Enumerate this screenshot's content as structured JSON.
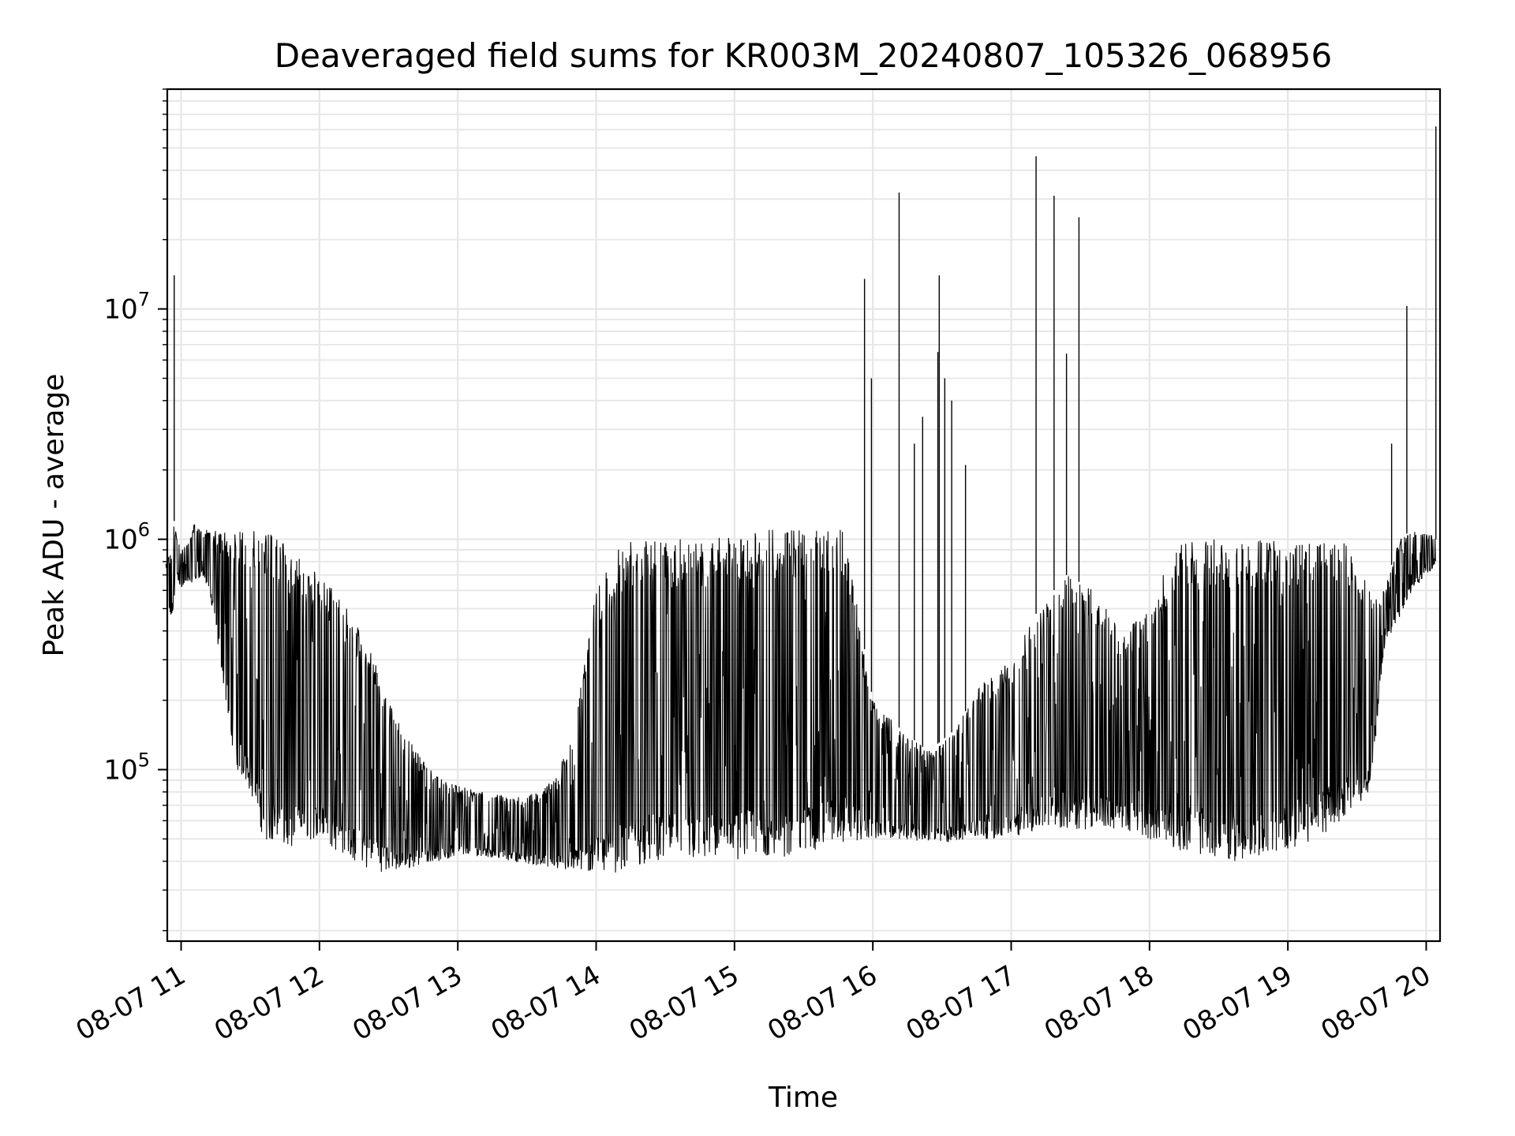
{
  "chart_data": {
    "type": "line",
    "title": "Deaveraged field sums for KR003M_20240807_105326_068956",
    "xlabel": "Time",
    "ylabel": "Peak ADU - average",
    "yscale": "log",
    "xlim_hours": [
      10.9,
      20.1
    ],
    "ylim": [
      18000,
      90000000
    ],
    "grid": "both (major and minor)",
    "line_color": "#000000",
    "x_tick_labels": [
      "08-07 11",
      "08-07 12",
      "08-07 13",
      "08-07 14",
      "08-07 15",
      "08-07 16",
      "08-07 17",
      "08-07 18",
      "08-07 19",
      "08-07 20"
    ],
    "y_tick_labels": [
      {
        "base": "10",
        "exp": "5"
      },
      {
        "base": "10",
        "exp": "6"
      },
      {
        "base": "10",
        "exp": "7"
      }
    ],
    "series": [
      {
        "x_hours": [
          10.89,
          10.93,
          10.95,
          10.97,
          11.0,
          11.05,
          11.1,
          11.15,
          11.2,
          11.25,
          11.3,
          11.35,
          11.4,
          11.45,
          11.5,
          11.55,
          11.6,
          11.7,
          11.8,
          11.9,
          12.0,
          12.1,
          12.2,
          12.3,
          12.4,
          12.5,
          12.6,
          12.7,
          12.8,
          12.9,
          13.0,
          13.2,
          13.4,
          13.6,
          13.8,
          14.0,
          14.2,
          14.4,
          14.6,
          14.8,
          15.0,
          15.2,
          15.4,
          15.6,
          15.8,
          16.0,
          16.2,
          16.4,
          16.6,
          16.8,
          17.0,
          17.2,
          17.4,
          17.6,
          17.8,
          18.0,
          18.2,
          18.4,
          18.6,
          18.8,
          19.0,
          19.2,
          19.4,
          19.5,
          19.6,
          19.7,
          19.8,
          19.9,
          20.0,
          20.05,
          20.07
        ],
        "low": [
          500000,
          450000,
          500000,
          700000,
          600000,
          650000,
          650000,
          700000,
          600000,
          400000,
          250000,
          150000,
          100000,
          90000,
          80000,
          60000,
          50000,
          45000,
          45000,
          50000,
          48000,
          45000,
          42000,
          38000,
          36000,
          36000,
          36000,
          38000,
          40000,
          40000,
          42000,
          42000,
          40000,
          38000,
          36000,
          35000,
          36000,
          40000,
          40000,
          40000,
          40000,
          42000,
          40000,
          45000,
          48000,
          50000,
          50000,
          48000,
          48000,
          50000,
          50000,
          55000,
          55000,
          55000,
          55000,
          50000,
          45000,
          42000,
          40000,
          40000,
          45000,
          50000,
          60000,
          70000,
          80000,
          350000,
          450000,
          600000,
          700000,
          750000,
          800000
        ],
        "high": [
          800000,
          900000,
          1200000,
          1000000,
          900000,
          1000000,
          1200000,
          1100000,
          1100000,
          1100000,
          1100000,
          1100000,
          1100000,
          1100000,
          1100000,
          1100000,
          1100000,
          1000000,
          900000,
          800000,
          700000,
          600000,
          500000,
          400000,
          300000,
          200000,
          150000,
          120000,
          100000,
          90000,
          85000,
          80000,
          75000,
          80000,
          120000,
          600000,
          1000000,
          1000000,
          1000000,
          1000000,
          1050000,
          1100000,
          1100000,
          1100000,
          1100000,
          200000,
          150000,
          120000,
          150000,
          250000,
          300000,
          500000,
          700000,
          600000,
          400000,
          500000,
          1000000,
          1000000,
          1000000,
          1000000,
          1000000,
          1000000,
          1000000,
          800000,
          600000,
          600000,
          1000000,
          1100000,
          1050000,
          1050000,
          1000000
        ]
      }
    ],
    "spikes": [
      {
        "x_hours": 10.95,
        "value": 14000000
      },
      {
        "x_hours": 15.94,
        "value": 13500000
      },
      {
        "x_hours": 15.99,
        "value": 5000000
      },
      {
        "x_hours": 16.19,
        "value": 32000000
      },
      {
        "x_hours": 16.3,
        "value": 2600000
      },
      {
        "x_hours": 16.36,
        "value": 3400000
      },
      {
        "x_hours": 16.48,
        "value": 14000000
      },
      {
        "x_hours": 16.47,
        "value": 6500000
      },
      {
        "x_hours": 16.52,
        "value": 5000000
      },
      {
        "x_hours": 16.57,
        "value": 4000000
      },
      {
        "x_hours": 16.67,
        "value": 2100000
      },
      {
        "x_hours": 17.18,
        "value": 46000000
      },
      {
        "x_hours": 17.31,
        "value": 31000000
      },
      {
        "x_hours": 17.4,
        "value": 6400000
      },
      {
        "x_hours": 17.49,
        "value": 25000000
      },
      {
        "x_hours": 19.86,
        "value": 10300000
      },
      {
        "x_hours": 19.75,
        "value": 2600000
      },
      {
        "x_hours": 20.07,
        "value": 62000000
      }
    ]
  }
}
